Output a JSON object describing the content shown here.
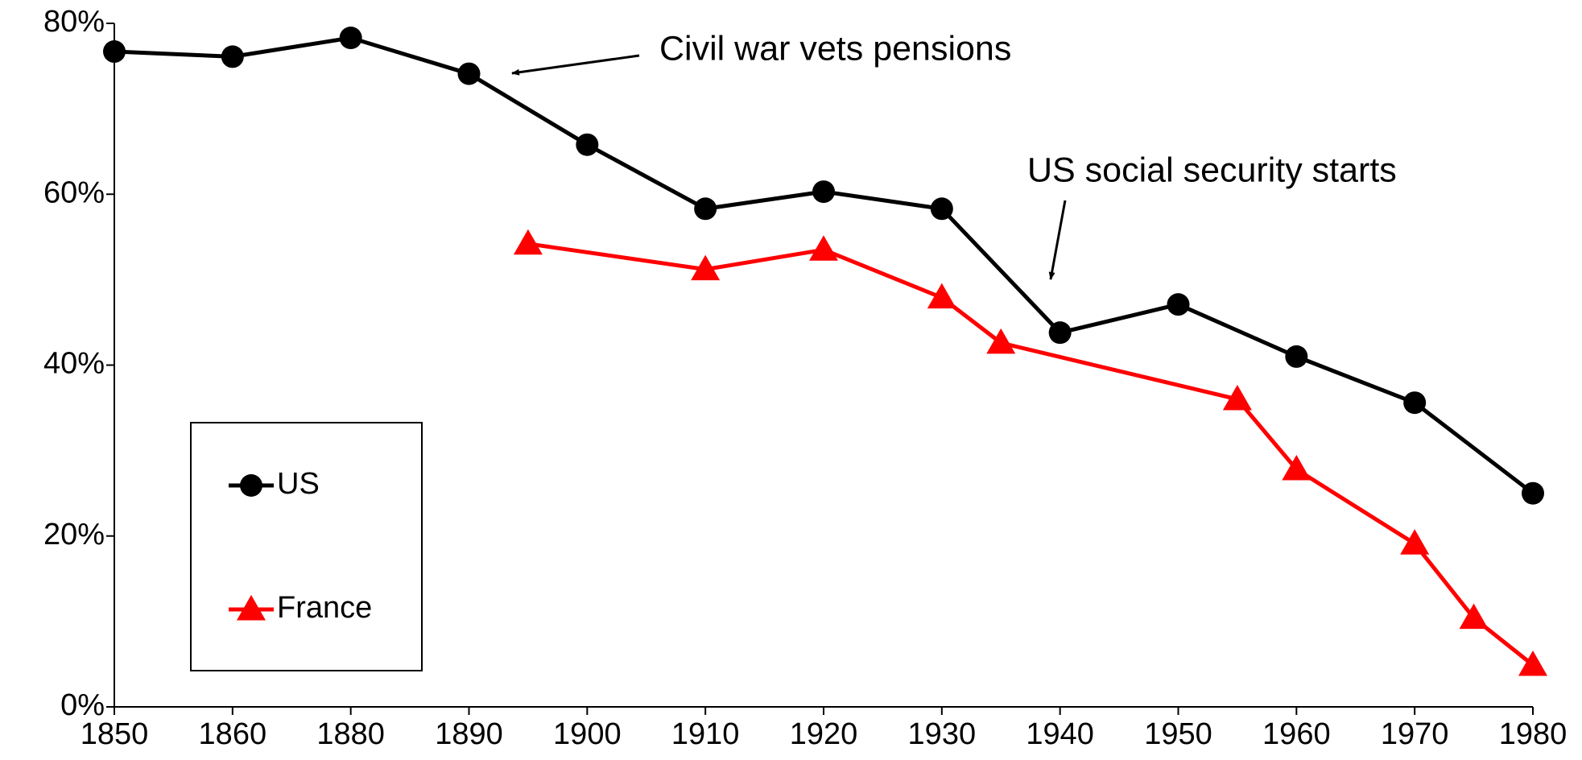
{
  "chart_data": {
    "type": "line",
    "xticks": [
      1850,
      1860,
      1880,
      1890,
      1900,
      1910,
      1920,
      1930,
      1940,
      1950,
      1960,
      1970,
      1980
    ],
    "ylim": [
      0,
      80
    ],
    "yticks": [
      {
        "value": 0,
        "label": "0%"
      },
      {
        "value": 20,
        "label": "20%"
      },
      {
        "value": 40,
        "label": "40%"
      },
      {
        "value": 60,
        "label": "60%"
      },
      {
        "value": 80,
        "label": "80%"
      }
    ],
    "series": [
      {
        "name": "US",
        "color": "#000000",
        "marker": "circle",
        "x": [
          1850,
          1860,
          1880,
          1890,
          1900,
          1910,
          1920,
          1930,
          1940,
          1950,
          1960,
          1970,
          1980
        ],
        "values": [
          76.7,
          76.1,
          78.3,
          74.1,
          65.8,
          58.3,
          60.3,
          58.3,
          43.8,
          47.1,
          41.0,
          35.6,
          25.0
        ]
      },
      {
        "name": "France",
        "color": "#ff0000",
        "marker": "triangle",
        "x": [
          1895,
          1910,
          1920,
          1930,
          1935,
          1955,
          1960,
          1970,
          1975,
          1980
        ],
        "values": [
          54.2,
          51.2,
          53.5,
          47.9,
          42.6,
          36.0,
          27.8,
          19.1,
          10.4,
          4.9
        ]
      }
    ],
    "annotations": [
      "Civil war vets pensions",
      "US social security starts"
    ]
  }
}
